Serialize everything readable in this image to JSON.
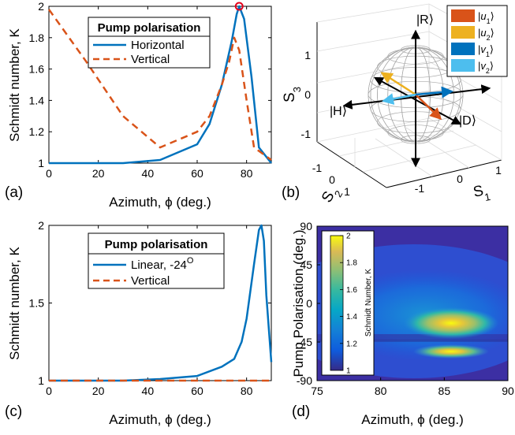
{
  "chart_data": [
    {
      "panel": "(a)",
      "type": "line",
      "xlabel": "Azimuth, ϕ (deg.)",
      "ylabel": "Schmidt number, K",
      "xlim": [
        0,
        90
      ],
      "ylim": [
        1,
        2
      ],
      "xticks": [
        0,
        20,
        40,
        60,
        80
      ],
      "yticks": [
        1,
        1.2,
        1.4,
        1.6,
        1.8,
        2
      ],
      "legend_title": "Pump polarisation",
      "legend_position": "top-center",
      "series": [
        {
          "name": "Horizontal",
          "style": "solid",
          "color": "#0072bd",
          "x": [
            0,
            30,
            45,
            60,
            65,
            70,
            74,
            76,
            77,
            79,
            82,
            85,
            90
          ],
          "y": [
            1.0,
            1.0,
            1.02,
            1.12,
            1.25,
            1.5,
            1.78,
            1.95,
            2.0,
            1.92,
            1.55,
            1.1,
            1.0
          ]
        },
        {
          "name": "Vertical",
          "style": "dashed",
          "color": "#d95319",
          "x": [
            0,
            15,
            30,
            45,
            60,
            65,
            70,
            73,
            75,
            77,
            80,
            83,
            90
          ],
          "y": [
            1.98,
            1.65,
            1.3,
            1.1,
            1.2,
            1.3,
            1.5,
            1.65,
            1.8,
            1.72,
            1.4,
            1.1,
            1.02
          ]
        }
      ],
      "marker": {
        "x": 77,
        "y": 2.0,
        "color": "#e4001b"
      }
    },
    {
      "panel": "(b)",
      "type": "diagram",
      "axis_labels": {
        "x": "S",
        "x_sub": "1",
        "y": "S",
        "y_sub": "2",
        "z": "S",
        "z_sub": "3"
      },
      "ticks_s1": [
        -1,
        0,
        1
      ],
      "ticks_s2": [
        -1,
        0,
        1
      ],
      "ticks_s3": [
        -1,
        0,
        1
      ],
      "state_labels": {
        "R": "|R⟩",
        "H": "|H⟩",
        "D": "|D⟩"
      },
      "legend": [
        {
          "label": "u",
          "sub": "1",
          "color": "#d95319"
        },
        {
          "label": "u",
          "sub": "2",
          "color": "#edb120"
        },
        {
          "label": "v",
          "sub": "1",
          "color": "#0072bd"
        },
        {
          "label": "v",
          "sub": "2",
          "color": "#4dbeee"
        }
      ]
    },
    {
      "panel": "(c)",
      "type": "line",
      "xlabel": "Azimuth, ϕ (deg.)",
      "ylabel": "Schmidt number, K",
      "xlim": [
        0,
        90
      ],
      "ylim": [
        1,
        2
      ],
      "xticks": [
        0,
        20,
        40,
        60,
        80
      ],
      "yticks": [
        1,
        1.5,
        2
      ],
      "legend_title": "Pump polarisation",
      "legend_position": "top-center",
      "series": [
        {
          "name": "Linear, -24",
          "name_sup": "O",
          "style": "solid",
          "color": "#0072bd",
          "x": [
            0,
            30,
            45,
            60,
            70,
            75,
            78,
            80,
            83,
            85,
            86,
            87,
            88,
            90
          ],
          "y": [
            1.0,
            1.0,
            1.01,
            1.03,
            1.09,
            1.14,
            1.25,
            1.4,
            1.75,
            1.97,
            2.0,
            1.9,
            1.55,
            1.12
          ]
        },
        {
          "name": "Vertical",
          "style": "dashed",
          "color": "#d95319",
          "x": [
            0,
            90
          ],
          "y": [
            1.0,
            1.0
          ]
        }
      ]
    },
    {
      "panel": "(d)",
      "type": "heatmap",
      "xlabel": "Azimuth, ϕ (deg.)",
      "ylabel": "Pump Polarisation (deg.)",
      "xlim": [
        75,
        90
      ],
      "ylim": [
        -90,
        90
      ],
      "xticks": [
        75,
        80,
        85,
        90
      ],
      "yticks": [
        90,
        45,
        0,
        -45,
        -90
      ],
      "colorbar_label": "Schmidt Number, K",
      "colorbar_range": [
        1,
        2
      ],
      "colorbar_ticks": [
        1,
        1.2,
        1.4,
        1.6,
        1.8,
        2
      ],
      "peaks": [
        {
          "x": 86,
          "y": -20,
          "value": 1.85
        },
        {
          "x": 86,
          "y": -52,
          "value": 1.95
        }
      ]
    }
  ]
}
